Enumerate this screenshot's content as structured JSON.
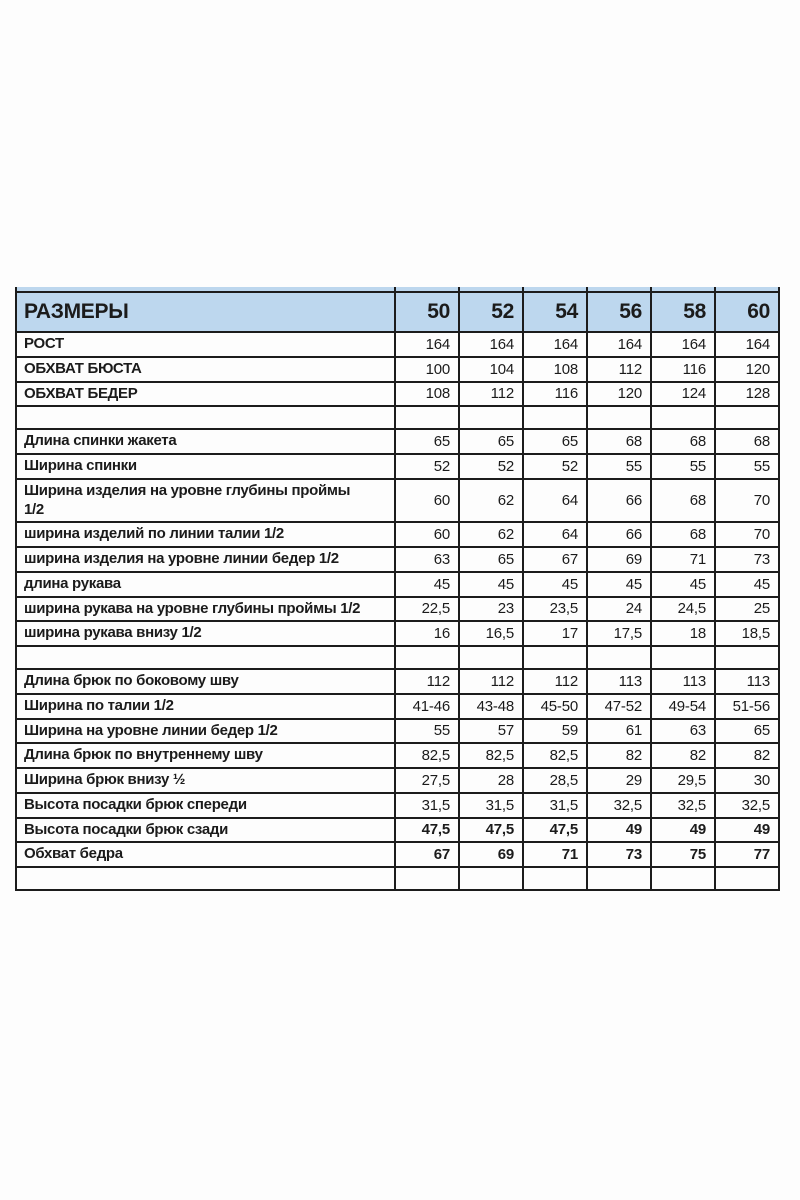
{
  "colors": {
    "header_bg": "#bdd7ee",
    "border": "#1c1c1c",
    "text": "#1b1b1b",
    "page_bg": "#fdfdfd"
  },
  "table": {
    "header": {
      "label": "РАЗМЕРЫ",
      "sizes": [
        "50",
        "52",
        "54",
        "56",
        "58",
        "60"
      ]
    },
    "rows": [
      {
        "label": "РОСТ",
        "values": [
          "164",
          "164",
          "164",
          "164",
          "164",
          "164"
        ]
      },
      {
        "label": "ОБХВАТ БЮСТА",
        "values": [
          "100",
          "104",
          "108",
          "112",
          "116",
          "120"
        ]
      },
      {
        "label": "ОБХВАТ БЕДЕР",
        "values": [
          "108",
          "112",
          "116",
          "120",
          "124",
          "128"
        ]
      },
      {
        "label": "",
        "values": [
          "",
          "",
          "",
          "",
          "",
          ""
        ],
        "spacer": true
      },
      {
        "label": "Длина спинки жакета",
        "values": [
          "65",
          "65",
          "65",
          "68",
          "68",
          "68"
        ]
      },
      {
        "label": "Ширина спинки",
        "values": [
          "52",
          "52",
          "52",
          "55",
          "55",
          "55"
        ]
      },
      {
        "label": "Ширина изделия на уровне глубины проймы\n1/2",
        "values": [
          "60",
          "62",
          "64",
          "66",
          "68",
          "70"
        ]
      },
      {
        "label": "ширина изделий по линии талии 1/2",
        "values": [
          "60",
          "62",
          "64",
          "66",
          "68",
          "70"
        ]
      },
      {
        "label": "ширина изделия на уровне линии бедер 1/2",
        "values": [
          "63",
          "65",
          "67",
          "69",
          "71",
          "73"
        ]
      },
      {
        "label": "длина рукава",
        "values": [
          "45",
          "45",
          "45",
          "45",
          "45",
          "45"
        ]
      },
      {
        "label": "ширина рукава на уровне глубины проймы 1/2",
        "values": [
          "22,5",
          "23",
          "23,5",
          "24",
          "24,5",
          "25"
        ]
      },
      {
        "label": "ширина рукава внизу 1/2",
        "values": [
          "16",
          "16,5",
          "17",
          "17,5",
          "18",
          "18,5"
        ]
      },
      {
        "label": "",
        "values": [
          "",
          "",
          "",
          "",
          "",
          ""
        ],
        "spacer": true
      },
      {
        "label": "Длина брюк по боковому шву",
        "values": [
          "112",
          "112",
          "112",
          "113",
          "113",
          "113"
        ]
      },
      {
        "label": "Ширина по талии 1/2",
        "values": [
          "41-46",
          "43-48",
          "45-50",
          "47-52",
          "49-54",
          "51-56"
        ]
      },
      {
        "label": "Ширина на уровне линии бедер 1/2",
        "values": [
          "55",
          "57",
          "59",
          "61",
          "63",
          "65"
        ]
      },
      {
        "label": "Длина брюк по внутреннему шву",
        "values": [
          "82,5",
          "82,5",
          "82,5",
          "82",
          "82",
          "82"
        ]
      },
      {
        "label": "Ширина брюк внизу ½",
        "values": [
          "27,5",
          "28",
          "28,5",
          "29",
          "29,5",
          "30"
        ]
      },
      {
        "label": "Высота посадки брюк спереди",
        "values": [
          "31,5",
          "31,5",
          "31,5",
          "32,5",
          "32,5",
          "32,5"
        ]
      },
      {
        "label": "Высота посадки брюк сзади",
        "values": [
          "47,5",
          "47,5",
          "47,5",
          "49",
          "49",
          "49"
        ],
        "bold": true
      },
      {
        "label": "Обхват бедра",
        "values": [
          "67",
          "69",
          "71",
          "73",
          "75",
          "77"
        ],
        "bold": true
      },
      {
        "label": "",
        "values": [
          "",
          "",
          "",
          "",
          "",
          ""
        ],
        "spacer": true
      }
    ]
  }
}
